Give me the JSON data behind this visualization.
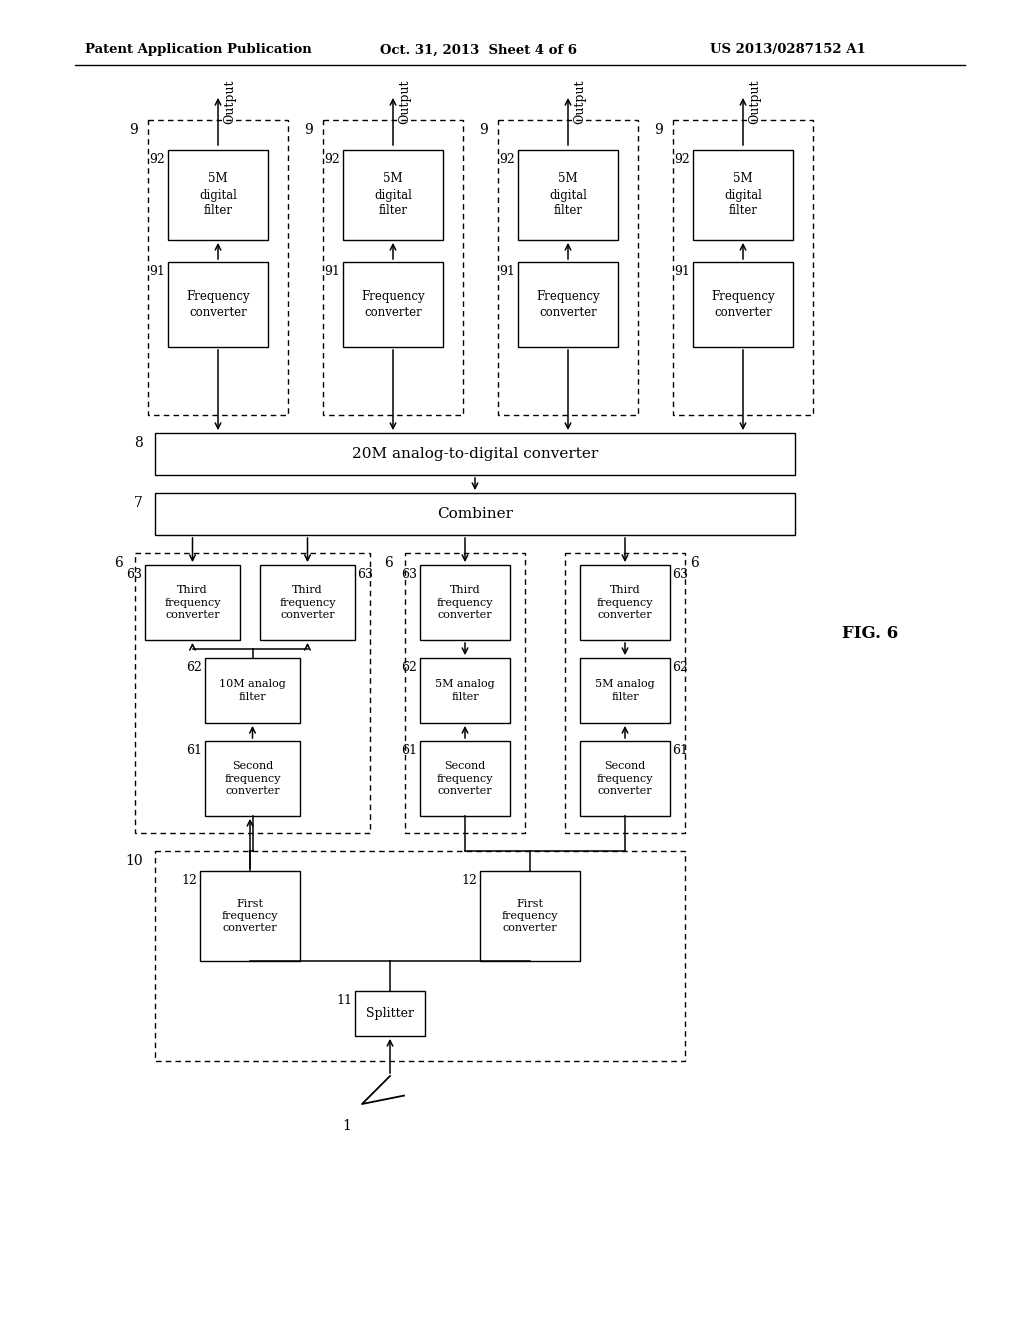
{
  "title_left": "Patent Application Publication",
  "title_center": "Oct. 31, 2013  Sheet 4 of 6",
  "title_right": "US 2013/0287152 A1",
  "fig_label": "FIG. 6",
  "bg_color": "#ffffff",
  "line_color": "#000000"
}
